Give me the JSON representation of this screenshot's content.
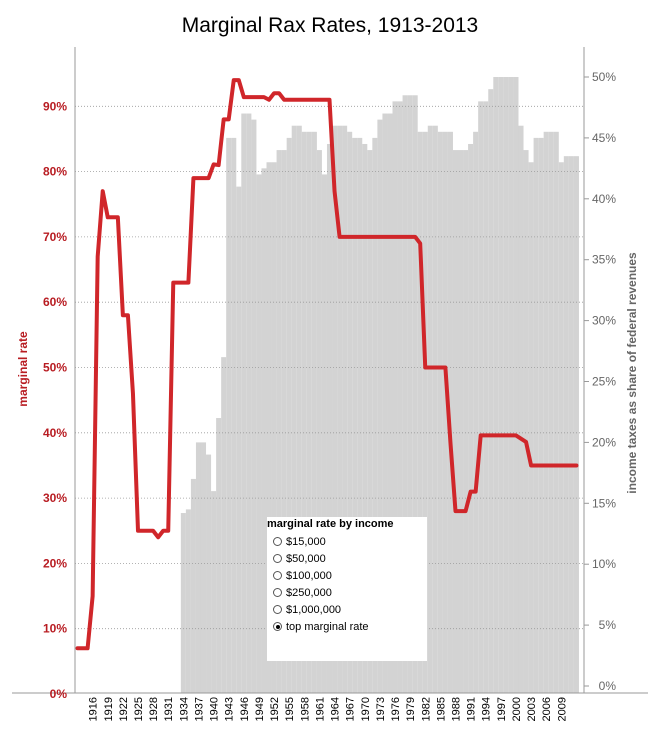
{
  "chart_data": {
    "type": "line",
    "title": "Marginal Rax Rates, 1913-2013",
    "ylabel_left": "marginal rate",
    "ylabel_right": "income taxes as share of federal revenues",
    "left_ticks": [
      "0%",
      "10%",
      "20%",
      "30%",
      "40%",
      "50%",
      "60%",
      "70%",
      "80%",
      "90%"
    ],
    "right_ticks": [
      "0%",
      "5%",
      "10%",
      "15%",
      "20%",
      "25%",
      "30%",
      "35%",
      "40%",
      "45%",
      "50%"
    ],
    "x_ticks": [
      "1916",
      "1919",
      "1922",
      "1925",
      "1928",
      "1931",
      "1934",
      "1937",
      "1940",
      "1943",
      "1946",
      "1949",
      "1952",
      "1955",
      "1958",
      "1961",
      "1964",
      "1967",
      "1970",
      "1973",
      "1976",
      "1979",
      "1982",
      "1985",
      "1988",
      "1991",
      "1994",
      "1997",
      "2000",
      "2003",
      "2006",
      "2009"
    ],
    "xlim": [
      1913,
      2013
    ],
    "ylim_left": [
      0,
      1.0
    ],
    "ylim_right": [
      0,
      0.52
    ],
    "line_color": "#d0262a",
    "bar_color": "#d3d3d3",
    "series": [
      {
        "name": "top marginal rate",
        "axis": "left",
        "type": "line",
        "points": [
          [
            1913,
            0.07
          ],
          [
            1914,
            0.07
          ],
          [
            1915,
            0.07
          ],
          [
            1916,
            0.15
          ],
          [
            1917,
            0.67
          ],
          [
            1918,
            0.77
          ],
          [
            1919,
            0.73
          ],
          [
            1920,
            0.73
          ],
          [
            1921,
            0.73
          ],
          [
            1922,
            0.58
          ],
          [
            1923,
            0.58
          ],
          [
            1924,
            0.46
          ],
          [
            1925,
            0.25
          ],
          [
            1926,
            0.25
          ],
          [
            1927,
            0.25
          ],
          [
            1928,
            0.25
          ],
          [
            1929,
            0.24
          ],
          [
            1930,
            0.25
          ],
          [
            1931,
            0.25
          ],
          [
            1932,
            0.63
          ],
          [
            1933,
            0.63
          ],
          [
            1934,
            0.63
          ],
          [
            1935,
            0.63
          ],
          [
            1936,
            0.79
          ],
          [
            1937,
            0.79
          ],
          [
            1938,
            0.79
          ],
          [
            1939,
            0.79
          ],
          [
            1940,
            0.811
          ],
          [
            1941,
            0.81
          ],
          [
            1942,
            0.88
          ],
          [
            1943,
            0.88
          ],
          [
            1944,
            0.94
          ],
          [
            1945,
            0.94
          ],
          [
            1946,
            0.914
          ],
          [
            1947,
            0.914
          ],
          [
            1948,
            0.914
          ],
          [
            1949,
            0.914
          ],
          [
            1950,
            0.914
          ],
          [
            1951,
            0.91
          ],
          [
            1952,
            0.92
          ],
          [
            1953,
            0.92
          ],
          [
            1954,
            0.91
          ],
          [
            1955,
            0.91
          ],
          [
            1956,
            0.91
          ],
          [
            1957,
            0.91
          ],
          [
            1958,
            0.91
          ],
          [
            1959,
            0.91
          ],
          [
            1960,
            0.91
          ],
          [
            1961,
            0.91
          ],
          [
            1962,
            0.91
          ],
          [
            1963,
            0.91
          ],
          [
            1964,
            0.77
          ],
          [
            1965,
            0.7
          ],
          [
            1966,
            0.7
          ],
          [
            1967,
            0.7
          ],
          [
            1968,
            0.7
          ],
          [
            1969,
            0.7
          ],
          [
            1970,
            0.7
          ],
          [
            1971,
            0.7
          ],
          [
            1972,
            0.7
          ],
          [
            1973,
            0.7
          ],
          [
            1974,
            0.7
          ],
          [
            1975,
            0.7
          ],
          [
            1976,
            0.7
          ],
          [
            1977,
            0.7
          ],
          [
            1978,
            0.7
          ],
          [
            1979,
            0.7
          ],
          [
            1980,
            0.7
          ],
          [
            1981,
            0.69
          ],
          [
            1982,
            0.5
          ],
          [
            1983,
            0.5
          ],
          [
            1984,
            0.5
          ],
          [
            1985,
            0.5
          ],
          [
            1986,
            0.5
          ],
          [
            1987,
            0.385
          ],
          [
            1988,
            0.28
          ],
          [
            1989,
            0.28
          ],
          [
            1990,
            0.28
          ],
          [
            1991,
            0.31
          ],
          [
            1992,
            0.31
          ],
          [
            1993,
            0.396
          ],
          [
            1994,
            0.396
          ],
          [
            1995,
            0.396
          ],
          [
            1996,
            0.396
          ],
          [
            1997,
            0.396
          ],
          [
            1998,
            0.396
          ],
          [
            1999,
            0.396
          ],
          [
            2000,
            0.396
          ],
          [
            2001,
            0.391
          ],
          [
            2002,
            0.386
          ],
          [
            2003,
            0.35
          ],
          [
            2004,
            0.35
          ],
          [
            2005,
            0.35
          ],
          [
            2006,
            0.35
          ],
          [
            2007,
            0.35
          ],
          [
            2008,
            0.35
          ],
          [
            2009,
            0.35
          ],
          [
            2010,
            0.35
          ],
          [
            2011,
            0.35
          ],
          [
            2012,
            0.35
          ]
        ]
      },
      {
        "name": "",
        "axis": "right",
        "type": "bar",
        "years": [
          1934,
          1935,
          1936,
          1937,
          1938,
          1939,
          1940,
          1941,
          1942,
          1943,
          1944,
          1945,
          1946,
          1947,
          1948,
          1949,
          1950,
          1951,
          1952,
          1953,
          1954,
          1955,
          1956,
          1957,
          1958,
          1959,
          1960,
          1961,
          1962,
          1963,
          1964,
          1965,
          1966,
          1967,
          1968,
          1969,
          1970,
          1971,
          1972,
          1973,
          1974,
          1975,
          1976,
          1977,
          1978,
          1979,
          1980,
          1981,
          1982,
          1983,
          1984,
          1985,
          1986,
          1987,
          1988,
          1989,
          1990,
          1991,
          1992,
          1993,
          1994,
          1995,
          1996,
          1997,
          1998,
          1999,
          2000,
          2001,
          2002,
          2003,
          2004,
          2005,
          2006,
          2007,
          2008,
          2009,
          2010,
          2011,
          2012
        ],
        "values": [
          0.142,
          0.145,
          0.17,
          0.2,
          0.2,
          0.19,
          0.16,
          0.22,
          0.27,
          0.45,
          0.45,
          0.41,
          0.47,
          0.47,
          0.465,
          0.42,
          0.425,
          0.43,
          0.43,
          0.44,
          0.44,
          0.45,
          0.46,
          0.46,
          0.455,
          0.455,
          0.455,
          0.44,
          0.42,
          0.445,
          0.46,
          0.46,
          0.46,
          0.455,
          0.45,
          0.45,
          0.445,
          0.44,
          0.45,
          0.465,
          0.47,
          0.47,
          0.48,
          0.48,
          0.485,
          0.485,
          0.485,
          0.455,
          0.455,
          0.46,
          0.46,
          0.455,
          0.455,
          0.455,
          0.44,
          0.44,
          0.44,
          0.445,
          0.455,
          0.48,
          0.48,
          0.49,
          0.5,
          0.5,
          0.5,
          0.5,
          0.5,
          0.46,
          0.44,
          0.43,
          0.45,
          0.45,
          0.455,
          0.455,
          0.455,
          0.43,
          0.435,
          0.435,
          0.435
        ]
      }
    ],
    "legend": {
      "title": "marginal rate by income",
      "options": [
        "$15,000",
        "$50,000",
        "$100,000",
        "$250,000",
        "$1,000,000",
        "top marginal rate"
      ],
      "selected": 5
    }
  }
}
